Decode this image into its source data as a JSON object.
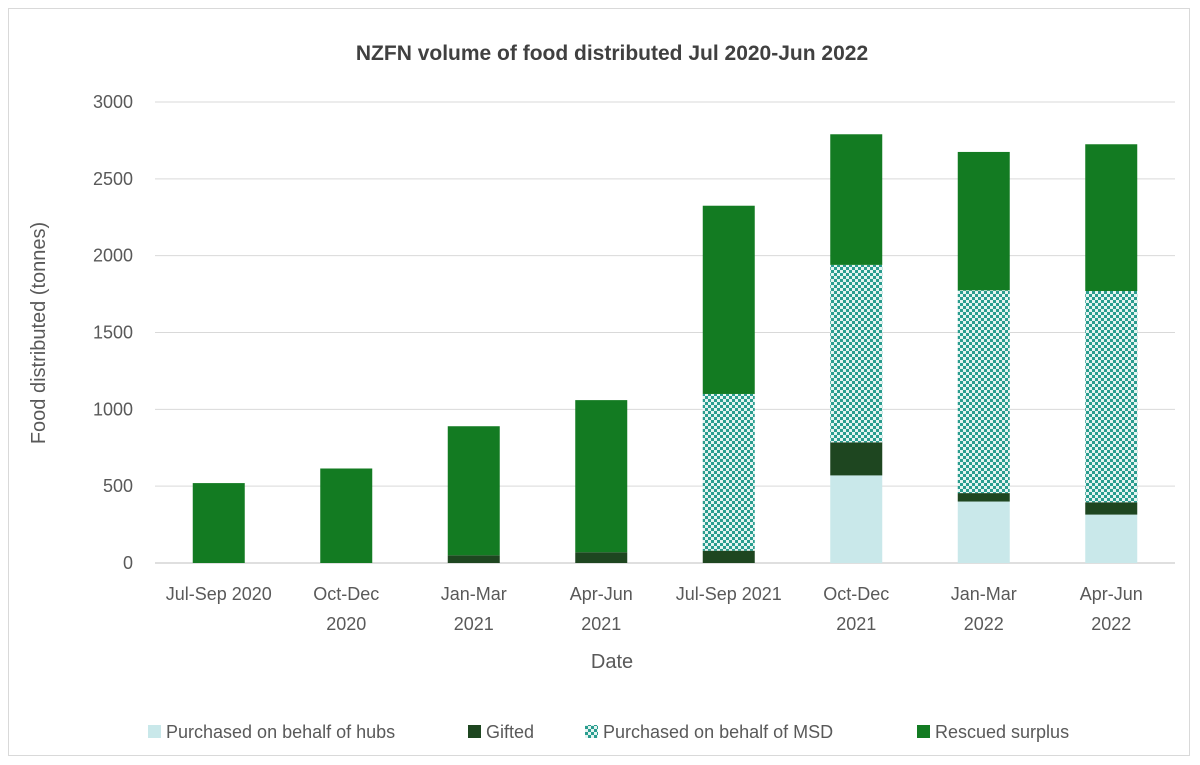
{
  "chart_data": {
    "type": "bar",
    "stacked": true,
    "title": "NZFN volume of food distributed Jul 2020-Jun 2022",
    "xlabel": "Date",
    "ylabel": "Food distributed (tonnes)",
    "ylim": [
      0,
      3000
    ],
    "yticks": [
      0,
      500,
      1000,
      1500,
      2000,
      2500,
      3000
    ],
    "grid": "horizontal",
    "legend_position": "bottom",
    "categories": [
      [
        "Jul-Sep 2020"
      ],
      [
        "Oct-Dec",
        "2020"
      ],
      [
        "Jan-Mar",
        "2021"
      ],
      [
        "Apr-Jun",
        "2021"
      ],
      [
        "Jul-Sep 2021"
      ],
      [
        "Oct-Dec",
        "2021"
      ],
      [
        "Jan-Mar",
        "2022"
      ],
      [
        "Apr-Jun",
        "2022"
      ]
    ],
    "series": [
      {
        "name": "Purchased on behalf of hubs",
        "color": "#c9e8ea",
        "pattern": "solid",
        "values": [
          0,
          0,
          0,
          0,
          0,
          570,
          400,
          315
        ]
      },
      {
        "name": "Gifted",
        "color": "#1e4620",
        "pattern": "solid",
        "values": [
          0,
          0,
          50,
          70,
          80,
          215,
          55,
          80
        ]
      },
      {
        "name": "Purchased on behalf of MSD",
        "color": "#2a9d8f",
        "pattern": "checker",
        "values": [
          0,
          0,
          0,
          0,
          1020,
          1155,
          1320,
          1375
        ]
      },
      {
        "name": "Rescued surplus",
        "color": "#137b22",
        "pattern": "solid",
        "values": [
          520,
          615,
          840,
          990,
          1225,
          850,
          900,
          955
        ]
      }
    ]
  }
}
